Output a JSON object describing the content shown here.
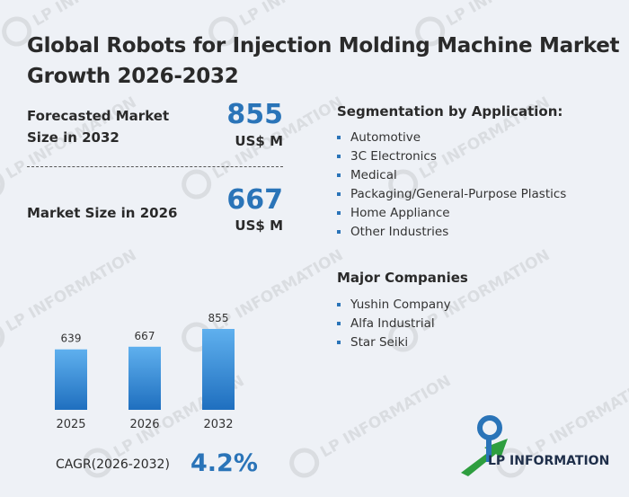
{
  "title": "Global Robots for Injection Molding Machine Market Growth 2026-2032",
  "stats": {
    "forecast": {
      "label_line1": "Forecasted Market",
      "label_line2": "Size in 2032",
      "value": "855",
      "unit": "US$ M"
    },
    "current": {
      "label": "Market Size in 2026",
      "value": "667",
      "unit": "US$ M"
    }
  },
  "segmentation": {
    "heading": "Segmentation by Application:",
    "items": [
      "Automotive",
      "3C Electronics",
      "Medical",
      "Packaging/General-Purpose Plastics",
      "Home Appliance",
      "Other Industries"
    ]
  },
  "companies": {
    "heading": "Major Companies",
    "items": [
      "Yushin Company",
      "Alfa Industrial",
      "Star Seiki"
    ]
  },
  "cagr": {
    "label": "CAGR(2026-2032)",
    "value": "4.2%"
  },
  "logo": {
    "text": "LP INFORMATION"
  },
  "colors": {
    "accent": "#2a74b8",
    "bar_top": "#5fb0ee",
    "bar_bottom": "#1f6fbf",
    "logo_green": "#2e9e3f",
    "logo_blue": "#2a74b8"
  },
  "watermark": "LP INFORMATION",
  "chart_data": {
    "type": "bar",
    "categories": [
      "2025",
      "2026",
      "2032"
    ],
    "values": [
      639,
      667,
      855
    ],
    "title": "",
    "xlabel": "",
    "ylabel": "",
    "ylim": [
      0,
      855
    ]
  }
}
